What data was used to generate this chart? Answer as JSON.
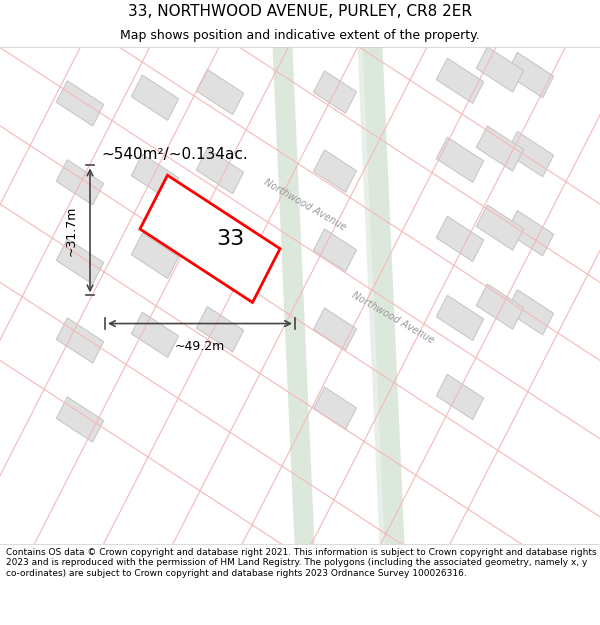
{
  "title": "33, NORTHWOOD AVENUE, PURLEY, CR8 2ER",
  "subtitle": "Map shows position and indicative extent of the property.",
  "footer": "Contains OS data © Crown copyright and database right 2021. This information is subject to Crown copyright and database rights 2023 and is reproduced with the permission of HM Land Registry. The polygons (including the associated geometry, namely x, y co-ordinates) are subject to Crown copyright and database rights 2023 Ordnance Survey 100026316.",
  "map_bg": "#f0f4f0",
  "road_bg": "#ffffff",
  "plot_outline_color": "#ff0000",
  "plot_fill_color": "#ffffff",
  "plot_label": "33",
  "area_label": "~540m²/~0.134ac.",
  "width_label": "~49.2m",
  "height_label": "~31.7m",
  "building_fill": "#e0e0e0",
  "building_stroke": "#c0c0c0",
  "road_line_color": "#f5b8b8",
  "road_text_color": "#888888",
  "road_name": "Northwood Avenue",
  "title_fontsize": 11,
  "subtitle_fontsize": 9,
  "footer_fontsize": 6.5
}
